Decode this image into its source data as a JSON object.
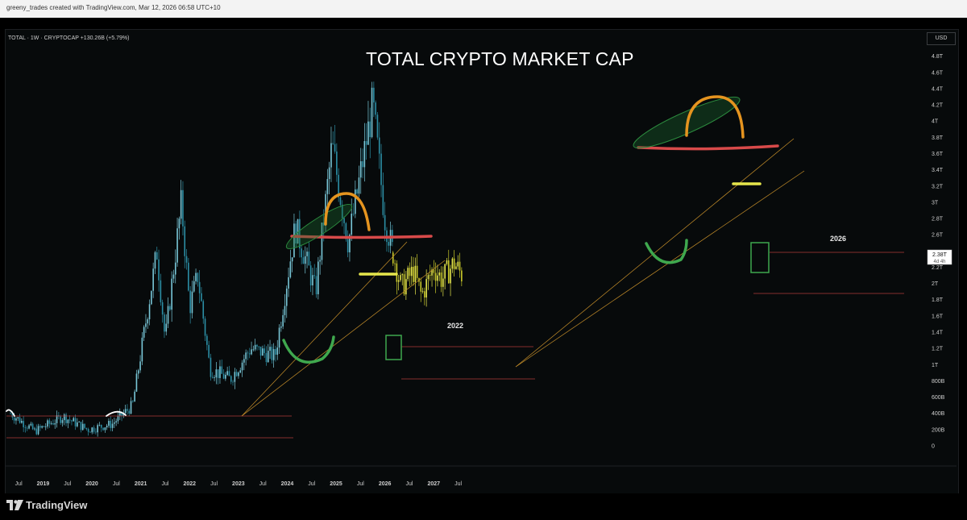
{
  "header": {
    "text": "greeny_trades created with TradingView.com, Mar 12, 2026 06:58 UTC+10"
  },
  "chart_data": {
    "type": "candlestick",
    "symbol_line": "TOTAL · 1W · CRYPTOCAP  +130.26B (+5.79%)",
    "title": "TOTAL CRYPTO MARKET CAP",
    "currency": "USD",
    "price_label": "2.38T",
    "countdown_label": "4d 4h",
    "y_ticks": [
      "4.8T",
      "4.6T",
      "4.4T",
      "4.2T",
      "4T",
      "3.8T",
      "3.6T",
      "3.4T",
      "3.2T",
      "3T",
      "2.8T",
      "2.6T",
      "2.2T",
      "2T",
      "1.8T",
      "1.6T",
      "1.4T",
      "1.2T",
      "1T",
      "800B",
      "600B",
      "400B",
      "200B",
      "0"
    ],
    "x_ticks": [
      "Jul",
      "2019",
      "Jul",
      "2020",
      "Jul",
      "2021",
      "Jul",
      "2022",
      "Jul",
      "2023",
      "Jul",
      "2024",
      "Jul",
      "2025",
      "Jul",
      "2026",
      "Jul",
      "2027",
      "Jul"
    ],
    "annotations": [
      "2022",
      "2026"
    ],
    "series": [
      {
        "colors": {
          "up": "#79c7d8",
          "down": "#2c8fa6"
        },
        "points": [
          [
            "2018-05",
            0.4
          ],
          [
            "2018-11",
            0.18
          ],
          [
            "2019-06",
            0.36
          ],
          [
            "2019-12",
            0.2
          ],
          [
            "2020-06",
            0.27
          ],
          [
            "2020-11",
            0.5
          ],
          [
            "2021-05",
            2.4
          ],
          [
            "2021-07",
            1.3
          ],
          [
            "2021-11",
            3.0
          ],
          [
            "2022-01",
            1.7
          ],
          [
            "2022-03",
            2.1
          ],
          [
            "2022-06",
            0.95
          ],
          [
            "2022-11",
            0.82
          ],
          [
            "2023-04",
            1.2
          ],
          [
            "2023-10",
            1.1
          ],
          [
            "2024-03",
            2.7
          ],
          [
            "2024-08",
            1.9
          ],
          [
            "2024-12",
            3.7
          ],
          [
            "2025-04",
            2.5
          ],
          [
            "2025-10",
            4.2
          ],
          [
            "2026-01",
            2.8
          ],
          [
            "2026-03",
            2.38
          ]
        ]
      },
      {
        "colors": {
          "up": "#e6e64c",
          "down": "#c9c92a"
        },
        "points": [
          [
            "2026-03",
            2.38
          ],
          [
            "2026-05",
            1.95
          ],
          [
            "2026-08",
            2.15
          ],
          [
            "2026-10",
            1.85
          ],
          [
            "2027-01",
            2.2
          ],
          [
            "2027-03",
            2.05
          ],
          [
            "2027-06",
            2.25
          ],
          [
            "2027-08",
            2.1
          ]
        ]
      }
    ]
  },
  "footer": {
    "logo_text": "TradingView"
  }
}
